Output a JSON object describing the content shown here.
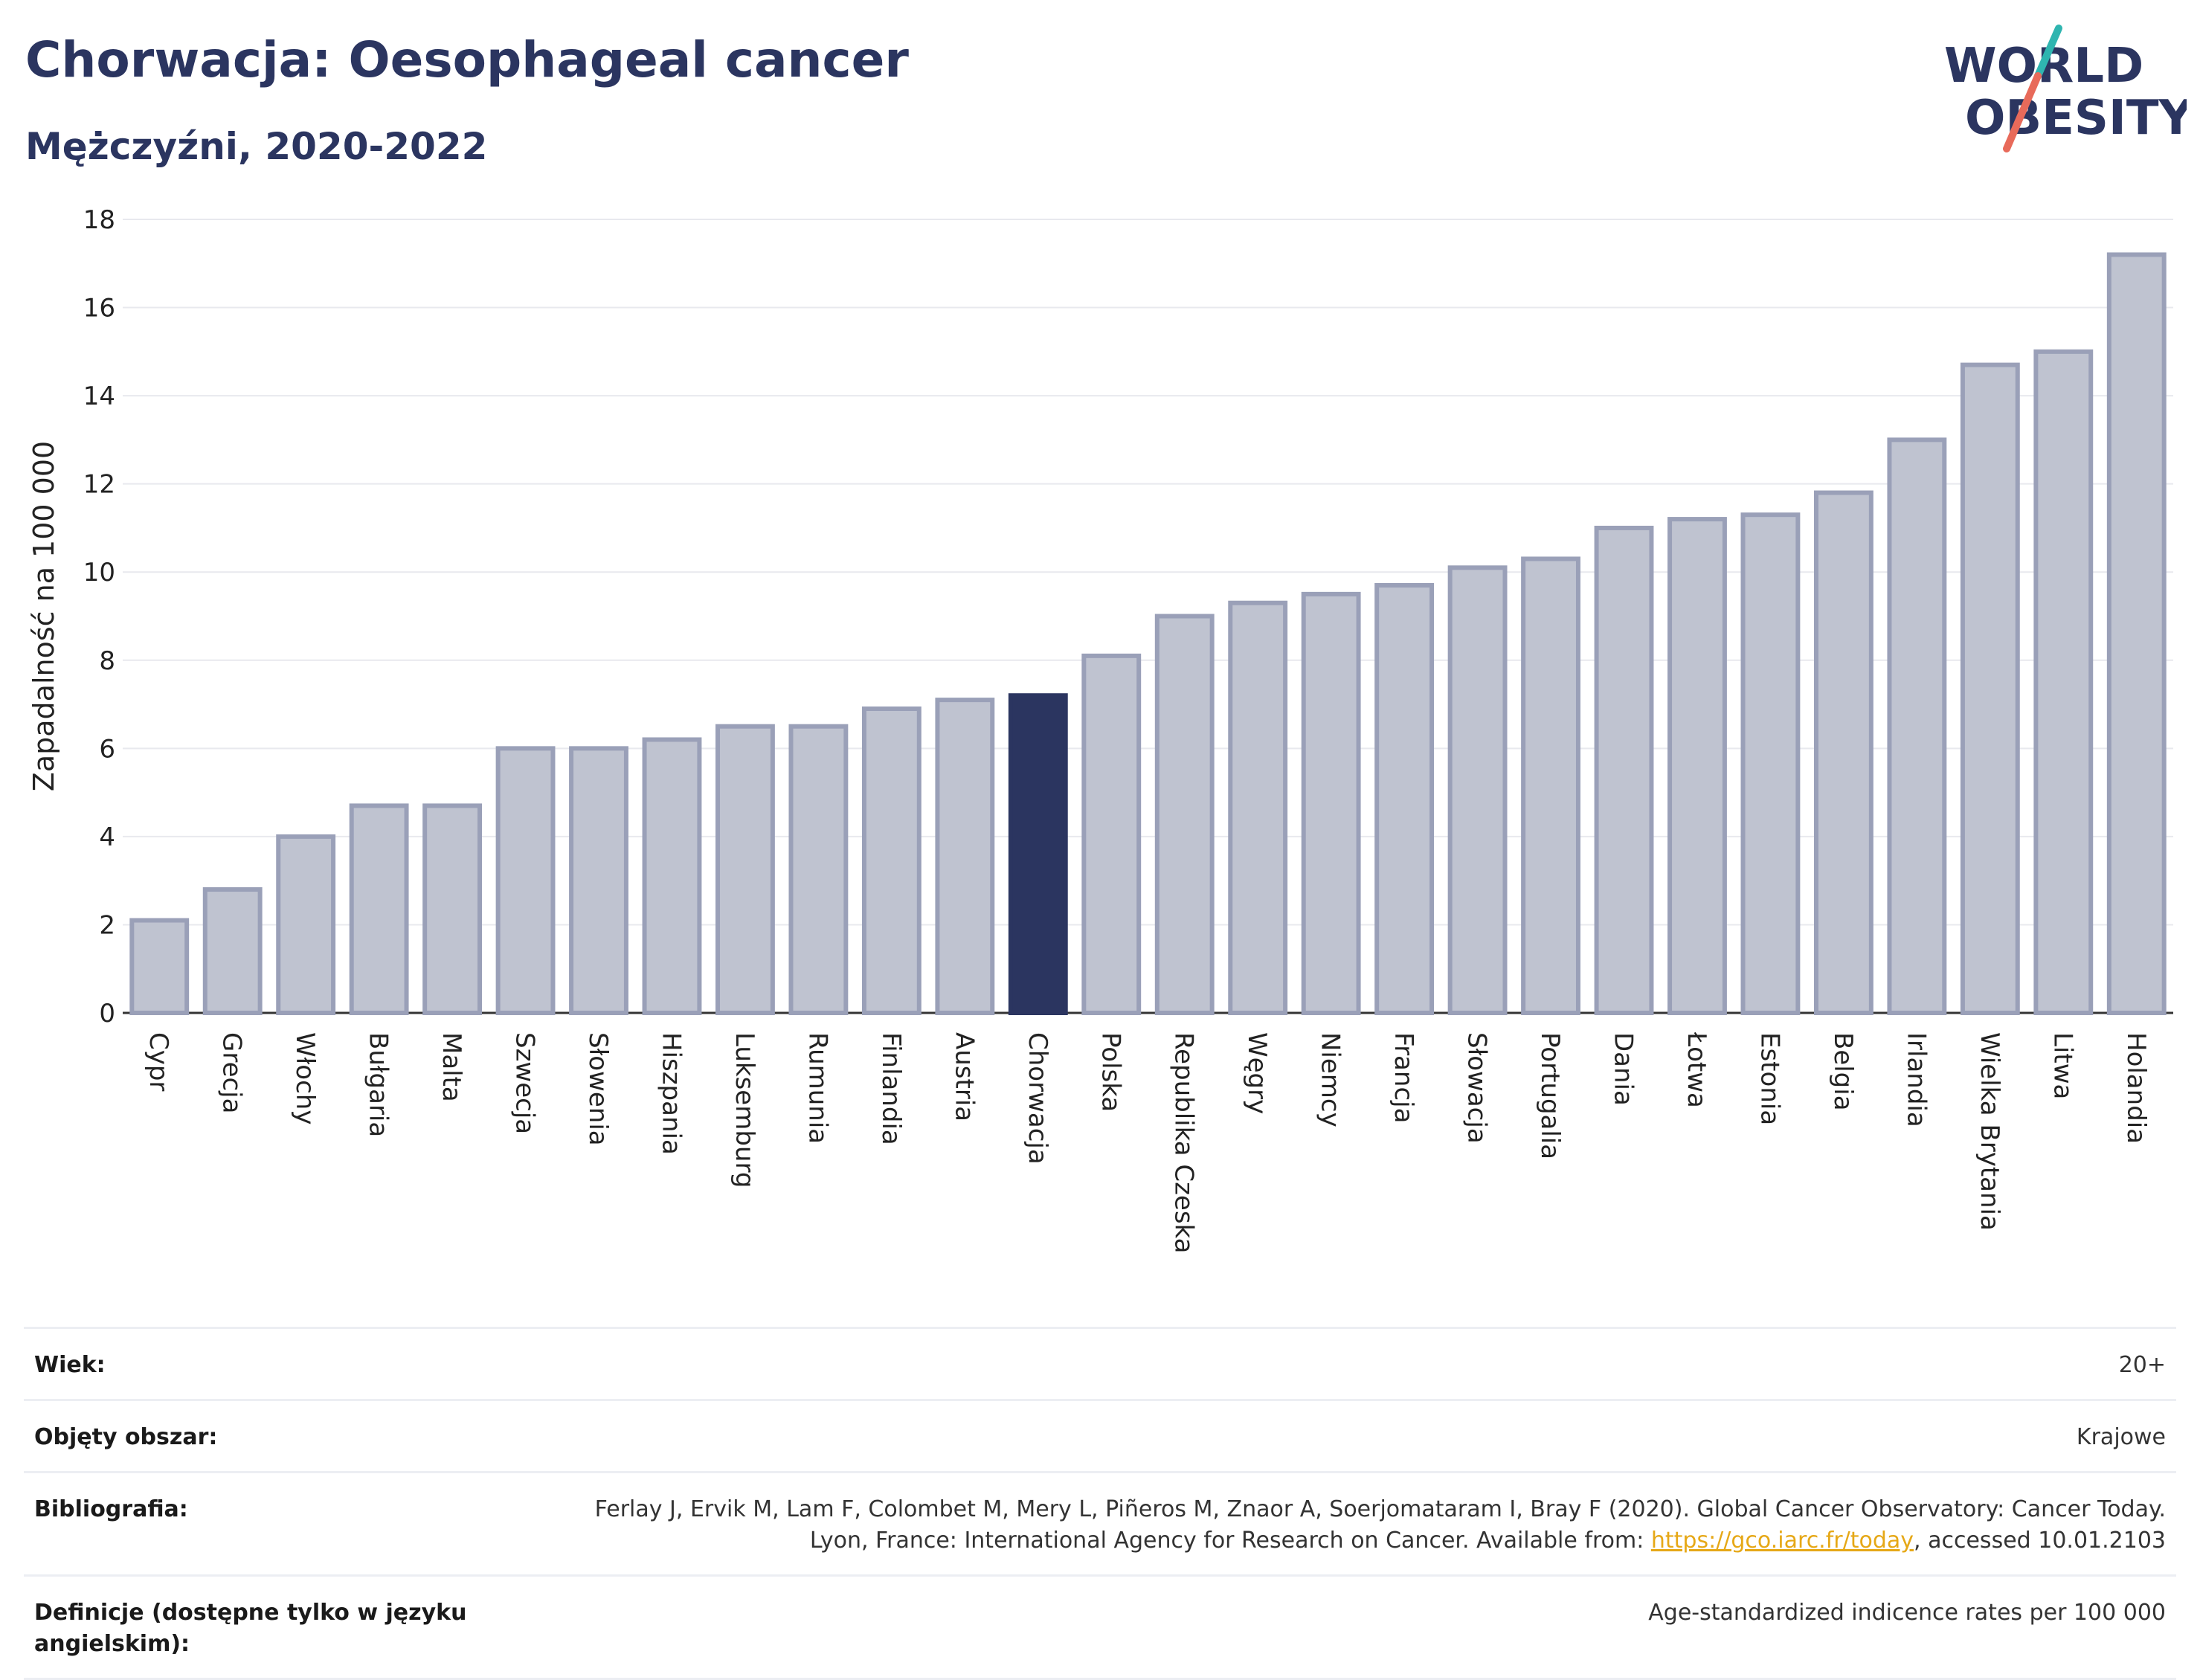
{
  "header": {
    "title": "Chorwacja: Oesophageal cancer",
    "subtitle": "Mężczyźni, 2020-2022"
  },
  "logo": {
    "line1": "WORLD",
    "line2": "OBESITY",
    "icon": "world-obesity-logo"
  },
  "colors": {
    "highlight": "#2b3560",
    "bar": "#bfc3d0",
    "bar_border": "#9aa0b8",
    "grid": "#e8e9ee",
    "link": "#e6a817"
  },
  "chart_data": {
    "type": "bar",
    "title": "Chorwacja: Oesophageal cancer",
    "subtitle": "Mężczyźni, 2020-2022",
    "xlabel": "",
    "ylabel": "Zapadalność na 100 000",
    "ylim": [
      0,
      18
    ],
    "yticks": [
      0,
      2,
      4,
      6,
      8,
      10,
      12,
      14,
      16,
      18
    ],
    "grid": true,
    "highlight": "Chorwacja",
    "categories": [
      "Cypr",
      "Grecja",
      "Włochy",
      "Bułgaria",
      "Malta",
      "Szwecja",
      "Słowenia",
      "Hiszpania",
      "Luksemburg",
      "Rumunia",
      "Finlandia",
      "Austria",
      "Chorwacja",
      "Polska",
      "Republika Czeska",
      "Węgry",
      "Niemcy",
      "Francja",
      "Słowacja",
      "Portugalia",
      "Dania",
      "Łotwa",
      "Estonia",
      "Belgia",
      "Irlandia",
      "Wielka Brytania",
      "Litwa",
      "Holandia"
    ],
    "values": [
      2.1,
      2.8,
      4.0,
      4.7,
      4.7,
      6.0,
      6.0,
      6.2,
      6.5,
      6.5,
      6.9,
      7.1,
      7.2,
      8.1,
      9.0,
      9.3,
      9.5,
      9.7,
      10.1,
      10.3,
      11.0,
      11.2,
      11.3,
      11.8,
      13.0,
      14.7,
      15.0,
      17.2
    ]
  },
  "info": {
    "age_label": "Wiek:",
    "age_value": "20+",
    "area_label": "Objęty obszar:",
    "area_value": "Krajowe",
    "bib_label": "Bibliografia:",
    "bib_text": "Ferlay J, Ervik M, Lam F, Colombet M, Mery L, Piñeros M, Znaor A, Soerjomataram I, Bray F (2020). Global Cancer Observatory: Cancer Today. Lyon, France: International Agency for Research on Cancer. Available from:",
    "bib_link": "https://gco.iarc.fr/today",
    "bib_suffix": ", accessed 10.01.2103",
    "def_label": "Definicje (dostępne tylko w języku angielskim):",
    "def_value": "Age-standardized indicence rates per 100 000"
  }
}
